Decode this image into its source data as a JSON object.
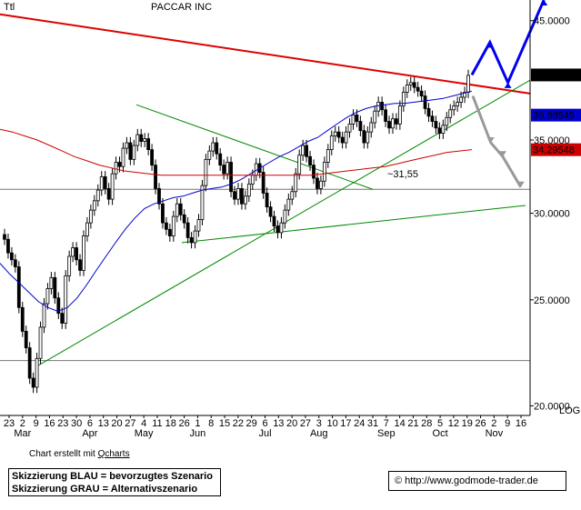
{
  "chart_data": {
    "type": "candlestick",
    "title": "PACCAR INC",
    "corner_label": "Ttl",
    "y_scale": "log",
    "y_scale_label": "LOG",
    "ylim": [
      19.6,
      47.0
    ],
    "y_ticks": [
      "45.0000",
      "35.0000",
      "30.0000",
      "25.0000",
      "20.0000"
    ],
    "y_tick_values": [
      45,
      35,
      30,
      25,
      20
    ],
    "x_tick_labels": [
      "23",
      "2",
      "9",
      "16",
      "23",
      "30",
      "6",
      "13",
      "20",
      "27",
      "4",
      "11",
      "18",
      "26",
      "1",
      "8",
      "15",
      "22",
      "29",
      "6",
      "13",
      "20",
      "27",
      "3",
      "10",
      "17",
      "24",
      "31",
      "7",
      "14",
      "21",
      "28",
      "5",
      "12",
      "19",
      "26",
      "2",
      "9",
      "16"
    ],
    "month_labels": [
      "Mar",
      "Apr",
      "May",
      "Jun",
      "Jul",
      "Aug",
      "Sep",
      "Oct",
      "Nov"
    ],
    "price_boxes": [
      {
        "label": "40.1400",
        "value": 40.14,
        "color": "#000000"
      },
      {
        "label": "36.88549",
        "value": 36.88549,
        "color": "#0000cc"
      },
      {
        "label": "34.29548",
        "value": 34.29548,
        "color": "#cc0000"
      }
    ],
    "annotation": "~31,55",
    "closes": [
      28.4,
      27.6,
      27.2,
      26.8,
      24.6,
      23.4,
      22.6,
      21.2,
      20.8,
      22.1,
      23.6,
      24.8,
      25.6,
      26.2,
      25.1,
      24.3,
      23.8,
      26.3,
      27.4,
      27.9,
      27.2,
      26.6,
      28.6,
      29.4,
      30.2,
      30.8,
      31.5,
      32.4,
      31.6,
      30.9,
      32.6,
      33.4,
      33.1,
      34.4,
      34.8,
      33.6,
      34.6,
      35.4,
      34.9,
      35.1,
      34.3,
      33.2,
      31.6,
      30.6,
      29.4,
      29.0,
      28.6,
      29.8,
      30.6,
      29.9,
      29.4,
      28.5,
      28.2,
      28.9,
      29.6,
      31.8,
      33.6,
      34.2,
      34.8,
      34.0,
      33.2,
      32.6,
      33.4,
      31.4,
      30.9,
      31.6,
      30.6,
      31.1,
      31.9,
      32.5,
      33.3,
      32.7,
      31.3,
      30.4,
      29.8,
      29.2,
      28.8,
      29.4,
      30.2,
      30.9,
      31.4,
      32.6,
      33.9,
      34.6,
      33.8,
      33.2,
      32.3,
      31.6,
      32.1,
      33.4,
      34.3,
      35.3,
      35.6,
      35.2,
      34.8,
      35.6,
      36.2,
      36.9,
      36.4,
      35.7,
      34.8,
      35.6,
      36.3,
      37.2,
      37.9,
      37.3,
      36.4,
      35.9,
      36.6,
      36.2,
      37.6,
      38.7,
      39.3,
      39.5,
      39.1,
      38.8,
      38.4,
      37.4,
      36.8,
      36.4,
      35.9,
      35.5,
      36.1,
      36.7,
      37.3,
      37.6,
      37.9,
      38.3,
      38.7,
      40.1
    ],
    "sma_blue": [
      27.0,
      26.4,
      25.9,
      25.4,
      24.9,
      24.6,
      24.4,
      24.6,
      25.1,
      25.8,
      26.6,
      27.4,
      28.2,
      29.0,
      29.7,
      30.3,
      30.6,
      30.8,
      31.0,
      31.1,
      31.3,
      31.5,
      31.6,
      31.7,
      31.9,
      32.2,
      32.6,
      33.0,
      33.4,
      33.8,
      34.1,
      34.5,
      34.9,
      35.2,
      35.7,
      36.2,
      36.7,
      37.1,
      37.4,
      37.6,
      37.7,
      37.8,
      37.8,
      37.9,
      38.0,
      38.1,
      38.2,
      38.4,
      38.6,
      38.8
    ],
    "sma_red": [
      35.8,
      35.6,
      35.3,
      35.0,
      34.6,
      34.2,
      33.8,
      33.5,
      33.2,
      33.0,
      32.8,
      32.7,
      32.6,
      32.5,
      32.5,
      32.5,
      32.5,
      32.5,
      32.5,
      32.5,
      32.5,
      32.5,
      32.5,
      32.5,
      32.5,
      32.5,
      32.6,
      32.7,
      32.8,
      32.9,
      33.0,
      33.1,
      33.3,
      33.5,
      33.7,
      33.9,
      34.1,
      34.2,
      34.3
    ],
    "trendlines": [
      {
        "name": "red resistance",
        "color": "#dd0000"
      },
      {
        "name": "green long-term support",
        "color": "#008800"
      },
      {
        "name": "green triangle upper",
        "color": "#008800"
      },
      {
        "name": "green triangle lower",
        "color": "#008800"
      },
      {
        "name": "grey horizontal",
        "color": "#555555"
      }
    ],
    "scenarios": [
      {
        "name": "blau",
        "color": "#0000ee",
        "points": [
          [
            40.14,
            0
          ],
          [
            43.0,
            3
          ],
          [
            39.5,
            6
          ],
          [
            47.0,
            12
          ]
        ]
      },
      {
        "name": "grau",
        "color": "#999999",
        "points": [
          [
            38.4,
            0
          ],
          [
            34.8,
            3
          ],
          [
            33.8,
            5
          ],
          [
            31.7,
            8
          ]
        ]
      }
    ]
  },
  "footer": {
    "credit_prefix": "Chart erstellt mit ",
    "credit_link": "Qcharts",
    "legend_line1": "Skizzierung BLAU = bevorzugtes Szenario",
    "legend_line2": "Skizzierung GRAU = Alternativszenario",
    "copyright": "© http://www.godmode-trader.de"
  }
}
